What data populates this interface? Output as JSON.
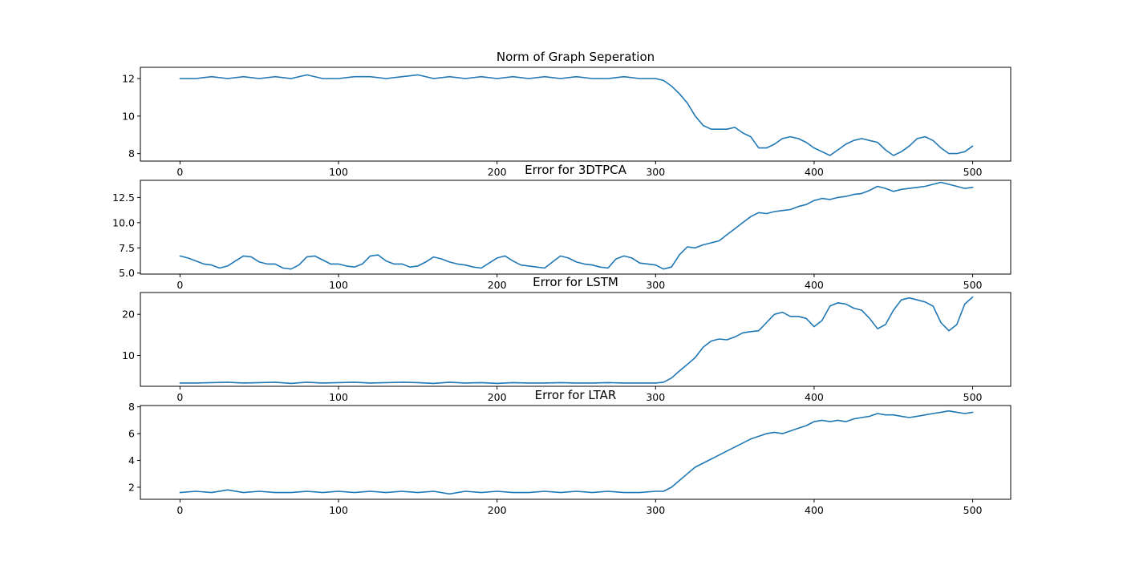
{
  "colors": {
    "line": "#1f77b4",
    "axes": "#000000",
    "background": "#ffffff"
  },
  "chart_data": [
    {
      "type": "line",
      "title": "Norm of Graph Seperation",
      "xlim": [
        -25,
        524
      ],
      "ylim": [
        7.6,
        12.6
      ],
      "xticks": [
        0,
        100,
        200,
        300,
        400,
        500
      ],
      "yticks": [
        8,
        10,
        12
      ],
      "ytick_labels": [
        "8",
        "10",
        "12"
      ],
      "series": [
        {
          "x": [
            0,
            10,
            20,
            30,
            40,
            50,
            60,
            70,
            80,
            90,
            100,
            110,
            120,
            130,
            140,
            150,
            160,
            170,
            180,
            190,
            200,
            210,
            220,
            230,
            240,
            250,
            260,
            270,
            280,
            290,
            300,
            305,
            310,
            315,
            320,
            325,
            330,
            335,
            340,
            345,
            350,
            355,
            360,
            365,
            370,
            375,
            380,
            385,
            390,
            395,
            400,
            405,
            410,
            415,
            420,
            425,
            430,
            435,
            440,
            445,
            450,
            455,
            460,
            465,
            470,
            475,
            480,
            485,
            490,
            495,
            500
          ],
          "y": [
            12.0,
            12.0,
            12.1,
            12.0,
            12.1,
            12.0,
            12.1,
            12.0,
            12.2,
            12.0,
            12.0,
            12.1,
            12.1,
            12.0,
            12.1,
            12.2,
            12.0,
            12.1,
            12.0,
            12.1,
            12.0,
            12.1,
            12.0,
            12.1,
            12.0,
            12.1,
            12.0,
            12.0,
            12.1,
            12.0,
            12.0,
            11.9,
            11.6,
            11.2,
            10.7,
            10.0,
            9.5,
            9.3,
            9.3,
            9.3,
            9.4,
            9.1,
            8.9,
            8.3,
            8.3,
            8.5,
            8.8,
            8.9,
            8.8,
            8.6,
            8.3,
            8.1,
            7.9,
            8.2,
            8.5,
            8.7,
            8.8,
            8.7,
            8.6,
            8.2,
            7.9,
            8.1,
            8.4,
            8.8,
            8.9,
            8.7,
            8.3,
            8.0,
            8.0,
            8.1,
            8.4
          ]
        }
      ]
    },
    {
      "type": "line",
      "title": "Error for 3DTPCA",
      "xlim": [
        -25,
        524
      ],
      "ylim": [
        4.9,
        14.2
      ],
      "xticks": [
        0,
        100,
        200,
        300,
        400,
        500
      ],
      "yticks": [
        5.0,
        7.5,
        10.0,
        12.5
      ],
      "ytick_labels": [
        "5.0",
        "7.5",
        "10.0",
        "12.5"
      ],
      "series": [
        {
          "x": [
            0,
            5,
            10,
            15,
            20,
            25,
            30,
            35,
            40,
            45,
            50,
            55,
            60,
            65,
            70,
            75,
            80,
            85,
            90,
            95,
            100,
            105,
            110,
            115,
            120,
            125,
            130,
            135,
            140,
            145,
            150,
            155,
            160,
            165,
            170,
            175,
            180,
            185,
            190,
            195,
            200,
            205,
            210,
            215,
            220,
            225,
            230,
            235,
            240,
            245,
            250,
            255,
            260,
            265,
            270,
            275,
            280,
            285,
            290,
            295,
            300,
            305,
            310,
            315,
            320,
            325,
            330,
            335,
            340,
            345,
            350,
            355,
            360,
            365,
            370,
            375,
            380,
            385,
            390,
            395,
            400,
            405,
            410,
            415,
            420,
            425,
            430,
            435,
            440,
            445,
            450,
            455,
            460,
            465,
            470,
            475,
            480,
            485,
            490,
            495,
            500
          ],
          "y": [
            6.7,
            6.5,
            6.2,
            5.9,
            5.8,
            5.5,
            5.7,
            6.2,
            6.7,
            6.6,
            6.1,
            5.9,
            5.9,
            5.5,
            5.4,
            5.8,
            6.6,
            6.7,
            6.3,
            5.9,
            5.9,
            5.7,
            5.6,
            5.9,
            6.7,
            6.8,
            6.2,
            5.9,
            5.9,
            5.6,
            5.7,
            6.1,
            6.6,
            6.4,
            6.1,
            5.9,
            5.8,
            5.6,
            5.5,
            6.0,
            6.5,
            6.7,
            6.2,
            5.8,
            5.7,
            5.6,
            5.5,
            6.1,
            6.7,
            6.5,
            6.1,
            5.9,
            5.8,
            5.6,
            5.5,
            6.4,
            6.7,
            6.5,
            6.0,
            5.9,
            5.8,
            5.4,
            5.6,
            6.8,
            7.6,
            7.5,
            7.8,
            8.0,
            8.2,
            8.8,
            9.4,
            10.0,
            10.6,
            11.0,
            10.9,
            11.1,
            11.2,
            11.3,
            11.6,
            11.8,
            12.2,
            12.4,
            12.3,
            12.5,
            12.6,
            12.8,
            12.9,
            13.2,
            13.6,
            13.4,
            13.1,
            13.3,
            13.4,
            13.5,
            13.6,
            13.8,
            14.0,
            13.8,
            13.6,
            13.4,
            13.5
          ]
        }
      ]
    },
    {
      "type": "line",
      "title": "Error for LSTM",
      "xlim": [
        -25,
        524
      ],
      "ylim": [
        2.5,
        25.3
      ],
      "xticks": [
        0,
        100,
        200,
        300,
        400,
        500
      ],
      "yticks": [
        10,
        20
      ],
      "ytick_labels": [
        "10",
        "20"
      ],
      "series": [
        {
          "x": [
            0,
            10,
            20,
            30,
            40,
            50,
            60,
            70,
            80,
            90,
            100,
            110,
            120,
            130,
            140,
            150,
            160,
            170,
            180,
            190,
            200,
            210,
            220,
            230,
            240,
            250,
            260,
            270,
            280,
            290,
            300,
            305,
            310,
            315,
            320,
            325,
            330,
            335,
            340,
            345,
            350,
            355,
            360,
            365,
            370,
            375,
            380,
            385,
            390,
            395,
            400,
            405,
            410,
            415,
            420,
            425,
            430,
            435,
            440,
            445,
            450,
            455,
            460,
            465,
            470,
            475,
            480,
            485,
            490,
            495,
            500
          ],
          "y": [
            3.3,
            3.3,
            3.4,
            3.5,
            3.3,
            3.4,
            3.5,
            3.2,
            3.5,
            3.3,
            3.4,
            3.5,
            3.3,
            3.4,
            3.5,
            3.4,
            3.2,
            3.5,
            3.3,
            3.4,
            3.2,
            3.4,
            3.3,
            3.3,
            3.4,
            3.3,
            3.3,
            3.4,
            3.3,
            3.3,
            3.3,
            3.5,
            4.5,
            6.2,
            7.8,
            9.5,
            12.0,
            13.5,
            14.0,
            13.8,
            14.5,
            15.5,
            15.8,
            16.0,
            18.0,
            20.0,
            20.5,
            19.5,
            19.5,
            19.0,
            17.0,
            18.5,
            22.0,
            22.8,
            22.5,
            21.5,
            21.0,
            19.0,
            16.5,
            17.5,
            21.0,
            23.5,
            24.0,
            23.5,
            23.0,
            22.0,
            18.0,
            16.0,
            17.5,
            22.5,
            24.2
          ]
        }
      ]
    },
    {
      "type": "line",
      "title": "Error for LTAR",
      "xlim": [
        -25,
        524
      ],
      "ylim": [
        1.1,
        8.1
      ],
      "xticks": [
        0,
        100,
        200,
        300,
        400,
        500
      ],
      "yticks": [
        2,
        4,
        6,
        8
      ],
      "ytick_labels": [
        "2",
        "4",
        "6",
        "8"
      ],
      "series": [
        {
          "x": [
            0,
            10,
            20,
            30,
            40,
            50,
            60,
            70,
            80,
            90,
            100,
            110,
            120,
            130,
            140,
            150,
            160,
            170,
            180,
            190,
            200,
            210,
            220,
            230,
            240,
            250,
            260,
            270,
            280,
            290,
            300,
            305,
            310,
            315,
            320,
            325,
            330,
            335,
            340,
            345,
            350,
            355,
            360,
            365,
            370,
            375,
            380,
            385,
            390,
            395,
            400,
            405,
            410,
            415,
            420,
            425,
            430,
            435,
            440,
            445,
            450,
            455,
            460,
            465,
            470,
            475,
            480,
            485,
            490,
            495,
            500
          ],
          "y": [
            1.6,
            1.7,
            1.6,
            1.8,
            1.6,
            1.7,
            1.6,
            1.6,
            1.7,
            1.6,
            1.7,
            1.6,
            1.7,
            1.6,
            1.7,
            1.6,
            1.7,
            1.5,
            1.7,
            1.6,
            1.7,
            1.6,
            1.6,
            1.7,
            1.6,
            1.7,
            1.6,
            1.7,
            1.6,
            1.6,
            1.7,
            1.7,
            2.0,
            2.5,
            3.0,
            3.5,
            3.8,
            4.1,
            4.4,
            4.7,
            5.0,
            5.3,
            5.6,
            5.8,
            6.0,
            6.1,
            6.0,
            6.2,
            6.4,
            6.6,
            6.9,
            7.0,
            6.9,
            7.0,
            6.9,
            7.1,
            7.2,
            7.3,
            7.5,
            7.4,
            7.4,
            7.3,
            7.2,
            7.3,
            7.4,
            7.5,
            7.6,
            7.7,
            7.6,
            7.5,
            7.6
          ]
        }
      ]
    }
  ]
}
